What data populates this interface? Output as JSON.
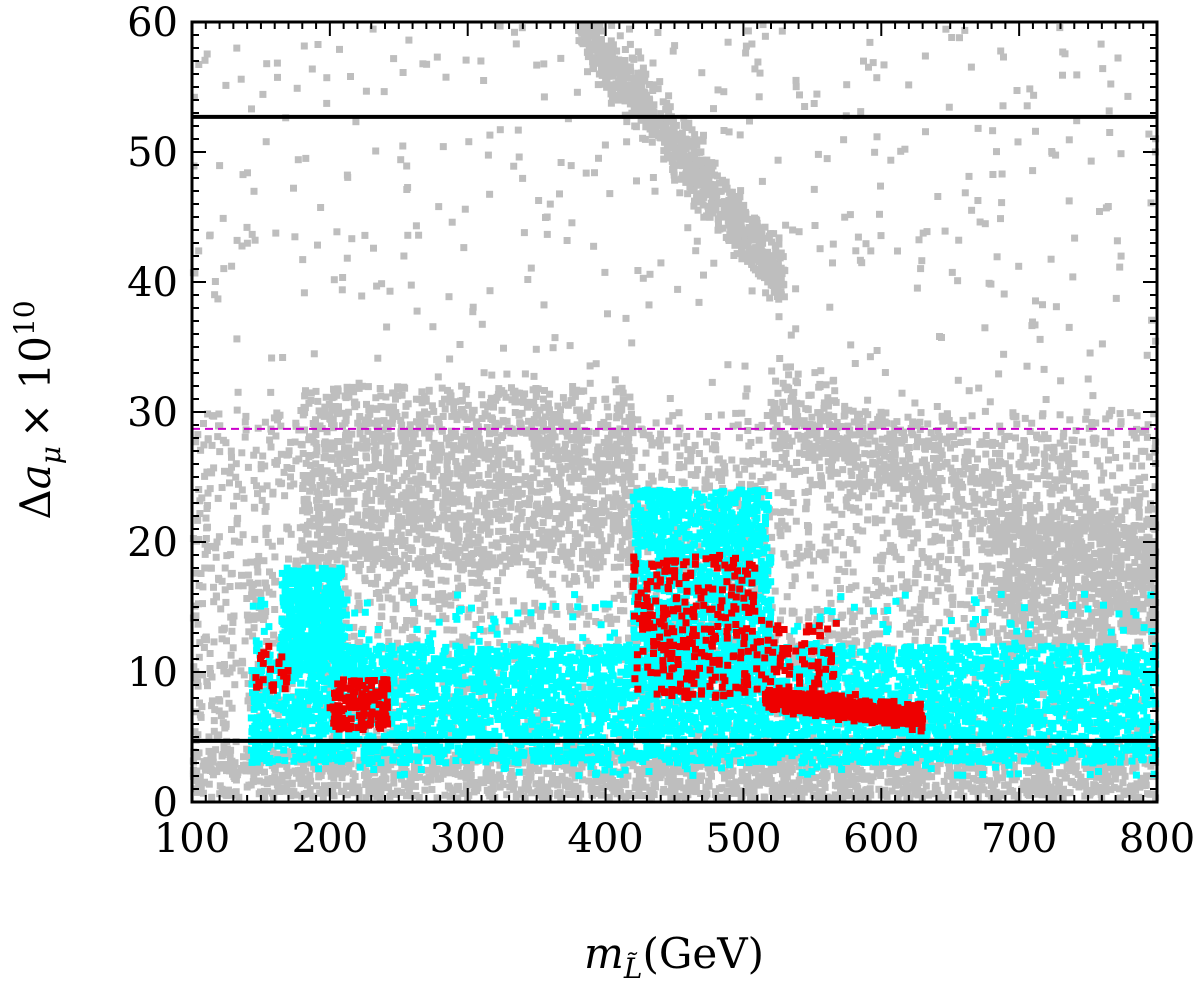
{
  "chart_data": {
    "type": "scatter",
    "title": "",
    "xlabel_parts": {
      "symbol": "m",
      "subscript": "L̃",
      "unit": "(GeV)"
    },
    "ylabel_parts": {
      "prefix": "Δ",
      "symbol": "a",
      "subscript": "μ",
      "times": "× 10",
      "exponent": "10"
    },
    "xlim": [
      100,
      800
    ],
    "ylim": [
      0,
      60
    ],
    "x_ticks": [
      100,
      200,
      300,
      400,
      500,
      600,
      700,
      800
    ],
    "y_ticks": [
      0,
      10,
      20,
      30,
      40,
      50,
      60
    ],
    "x_tick_labels": [
      "100",
      "200",
      "300",
      "400",
      "500",
      "600",
      "700",
      "800"
    ],
    "y_tick_labels": [
      "0",
      "10",
      "20",
      "30",
      "40",
      "50",
      "60"
    ],
    "grid": false,
    "legend": "none",
    "colors": {
      "gray": "#bebebe",
      "cyan": "#00ffff",
      "red": "#ee0000",
      "bound": "#000000",
      "central": "#cc00cc"
    },
    "reference_lines": [
      {
        "y": 52.7,
        "style": "solid",
        "color": "#000000"
      },
      {
        "y": 28.7,
        "style": "dashed",
        "color": "#cc00cc"
      },
      {
        "y": 4.7,
        "style": "solid",
        "color": "#000000"
      }
    ],
    "series": [
      {
        "color_key": "gray",
        "regions": [
          {
            "x": [
              100,
              800
            ],
            "y": [
              0.3,
              4.0
            ],
            "n": 1800
          },
          {
            "x": [
              100,
              800
            ],
            "y": [
              3,
              30
            ],
            "n": 3500
          },
          {
            "x": [
              180,
              420
            ],
            "y": [
              18,
              32
            ],
            "n": 1200
          },
          {
            "x": [
              100,
              800
            ],
            "y": [
              25,
              60
            ],
            "n": 500
          },
          {
            "x": [
              680,
              800
            ],
            "y": [
              12,
              22
            ],
            "n": 500
          }
        ],
        "bands": [
          {
            "x": [
              380,
              530
            ],
            "y_at_x0": 60,
            "y_at_x1": 40,
            "spread": 2.5,
            "n": 900
          },
          {
            "x": [
              520,
              800
            ],
            "y_at_x0": 30,
            "y_at_x1": 18,
            "spread": 4,
            "n": 700
          }
        ]
      },
      {
        "color_key": "cyan",
        "regions": [
          {
            "x": [
              143,
              800
            ],
            "y": [
              3,
              12
            ],
            "n": 4200
          },
          {
            "x": [
              165,
              210
            ],
            "y": [
              10,
              18
            ],
            "n": 500
          },
          {
            "x": [
              420,
              520
            ],
            "y": [
              9,
              24
            ],
            "n": 1300
          },
          {
            "x": [
              143,
              800
            ],
            "y": [
              2,
              16
            ],
            "n": 500
          }
        ]
      },
      {
        "color_key": "red",
        "regions": [
          {
            "x": [
              145,
              170
            ],
            "y": [
              8.5,
              12
            ],
            "n": 25
          },
          {
            "x": [
              200,
              242
            ],
            "y": [
              5.5,
              9.5
            ],
            "n": 160
          },
          {
            "x": [
              420,
              510
            ],
            "y": [
              8,
              19
            ],
            "n": 280
          },
          {
            "x": [
              510,
              570
            ],
            "y": [
              9,
              14
            ],
            "n": 60
          }
        ],
        "bands": [
          {
            "x": [
              515,
              630
            ],
            "y_at_x0": 8,
            "y_at_x1": 6.5,
            "spread": 0.8,
            "n": 650
          }
        ]
      }
    ]
  }
}
